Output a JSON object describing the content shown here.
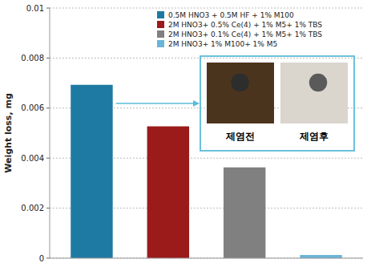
{
  "chart_data": {
    "type": "bar",
    "categories": [
      "0.5M HNO3 + 0.5M HF + 1% M100",
      "2M HNO3+ 0.5% Ce(4) + 1% M5+ 1% TBS",
      "2M HNO3+ 0.1% Ce(4) + 1% M5+ 1% TBS",
      "2M HNO3+ 1% M100+ 1% M5"
    ],
    "values": [
      0.00693,
      0.00527,
      0.00363,
      0.000127
    ],
    "colors": [
      "#1f7aa3",
      "#9b1a1a",
      "#808080",
      "#6ab4d8"
    ],
    "ylabel": "Weight loss, mg",
    "ylim": [
      0,
      0.01
    ],
    "yticks": [
      0,
      0.002,
      0.004,
      0.006,
      0.008,
      0.01
    ],
    "grid": true,
    "legend": "upper right",
    "tick_labels": "y",
    "annotations": [
      "제염전",
      "제염후"
    ]
  }
}
